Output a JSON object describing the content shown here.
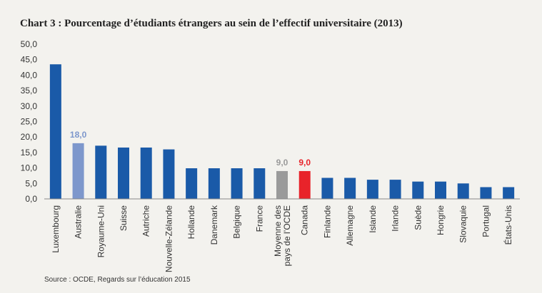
{
  "chart_data": {
    "type": "bar",
    "title": "Chart 3 : Pourcentage d’étudiants étrangers au sein de l’effectif universitaire (2013)",
    "source": "Source : OCDE, Regards sur l’éducation 2015",
    "categories": [
      "Luxembourg",
      "Australie",
      "Royaume-Uni",
      "Suisse",
      "Autriche",
      "Nouvelle-Zélande",
      "Hollande",
      "Danemark",
      "Belgique",
      "France",
      "Moyenne des pays de l’OCDE",
      "Canada",
      "Finlande",
      "Allemagne",
      "Islande",
      "Irlande",
      "Suède",
      "Hongrie",
      "Slovaquie",
      "Portugal",
      "États-Unis"
    ],
    "values": [
      43.5,
      18.0,
      17.2,
      16.6,
      16.6,
      16.0,
      9.9,
      9.9,
      9.9,
      9.9,
      9.0,
      9.0,
      6.8,
      6.8,
      6.2,
      6.2,
      5.6,
      5.6,
      5.0,
      3.8,
      3.8
    ],
    "value_labels": [
      null,
      "18,0",
      null,
      null,
      null,
      null,
      null,
      null,
      null,
      null,
      "9,0",
      "9,0",
      null,
      null,
      null,
      null,
      null,
      null,
      null,
      null,
      null
    ],
    "colors": [
      "#1a5aa8",
      "#7d97cc",
      "#1a5aa8",
      "#1a5aa8",
      "#1a5aa8",
      "#1a5aa8",
      "#1a5aa8",
      "#1a5aa8",
      "#1a5aa8",
      "#1a5aa8",
      "#9a9a9a",
      "#e8232a",
      "#1a5aa8",
      "#1a5aa8",
      "#1a5aa8",
      "#1a5aa8",
      "#1a5aa8",
      "#1a5aa8",
      "#1a5aa8",
      "#1a5aa8",
      "#1a5aa8"
    ],
    "ylim": [
      0,
      50
    ],
    "yticks": [
      {
        "value": 0,
        "label": "0,0"
      },
      {
        "value": 5,
        "label": "5,0"
      },
      {
        "value": 10,
        "label": "10,0"
      },
      {
        "value": 15,
        "label": "15,0"
      },
      {
        "value": 20,
        "label": "20,0"
      },
      {
        "value": 25,
        "label": "25,0"
      },
      {
        "value": 30,
        "label": "30,0"
      },
      {
        "value": 35,
        "label": "35,0"
      },
      {
        "value": 40,
        "label": "40,0"
      },
      {
        "value": 45,
        "label": "45,0"
      },
      {
        "value": 50,
        "label": "50,0"
      }
    ],
    "grid": false
  }
}
